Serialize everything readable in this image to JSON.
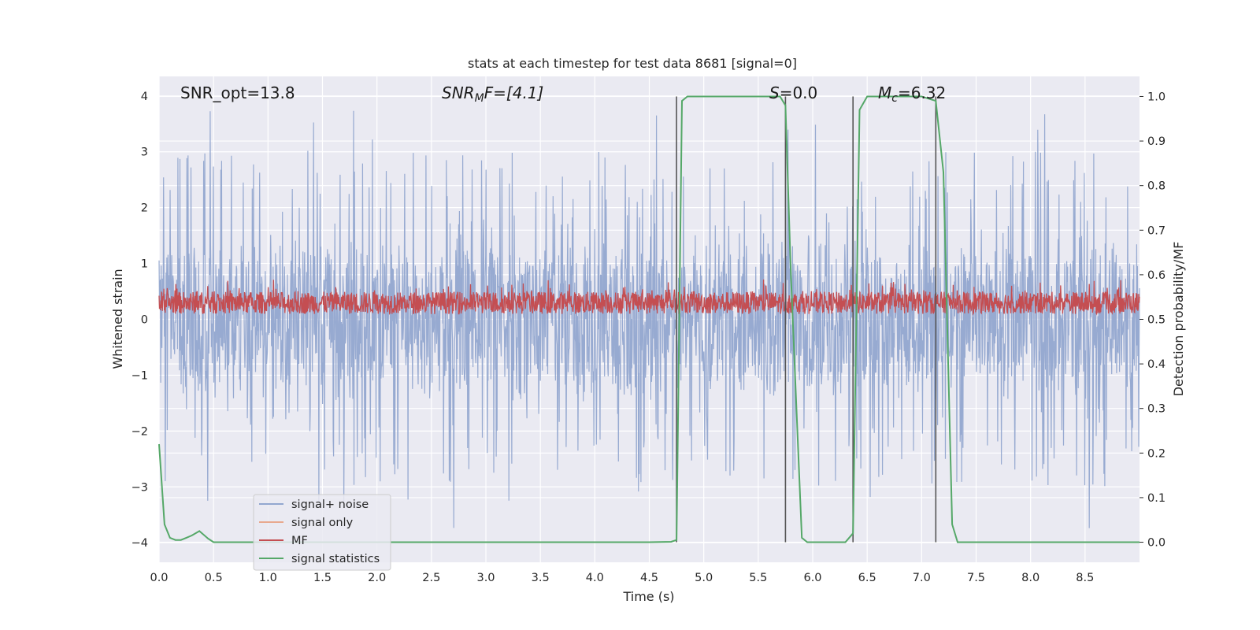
{
  "chart_data": {
    "type": "line",
    "title": "stats at each timestep for test data 8681 [signal=0]",
    "xlabel": "Time (s)",
    "ylabel_left": "Whitened strain",
    "ylabel_right": "Detection probability/MF",
    "xlim": [
      0.0,
      9.0
    ],
    "ylim_left": [
      -4.35,
      4.35
    ],
    "ylim_right": [
      -0.045,
      1.045
    ],
    "x_ticks": [
      "0.0",
      "0.5",
      "1.0",
      "1.5",
      "2.0",
      "2.5",
      "3.0",
      "3.5",
      "4.0",
      "4.5",
      "5.0",
      "5.5",
      "6.0",
      "6.5",
      "7.0",
      "7.5",
      "8.0",
      "8.5"
    ],
    "y_ticks_left": [
      "−4",
      "−3",
      "−2",
      "−1",
      "0",
      "1",
      "2",
      "3",
      "4"
    ],
    "y_ticks_right": [
      "0.0",
      "0.1",
      "0.2",
      "0.3",
      "0.4",
      "0.5",
      "0.6",
      "0.7",
      "0.8",
      "0.9",
      "1.0"
    ],
    "grid": true,
    "legend_position": "lower-left",
    "annotations": {
      "snr_opt": "SNR_opt=13.8",
      "snr_mf_main": "SNR",
      "snr_mf_sub": "M",
      "snr_mf_rest": "F=[4.1]",
      "s_main": "S",
      "s_rest": "=0.0",
      "mc_main": "M",
      "mc_sub": "c",
      "mc_rest": "=6.32"
    },
    "vertical_lines_x": [
      4.75,
      5.75,
      6.37,
      7.13
    ],
    "series": [
      {
        "name": "signal+ noise",
        "color": "#92a7cf",
        "axis": "left",
        "band_low": -1.3,
        "band_high": 1.3,
        "spike_range": [
          -3.8,
          4.0
        ]
      },
      {
        "name": "signal only",
        "color": "#e8a98e",
        "axis": "left"
      },
      {
        "name": "MF",
        "color": "#c44e52",
        "axis": "right",
        "range": [
          0.5,
          0.6
        ]
      },
      {
        "name": "signal statistics",
        "color": "#55a868",
        "axis": "right",
        "x": [
          0.0,
          0.05,
          0.1,
          0.15,
          0.2,
          0.25,
          0.3,
          0.37,
          0.45,
          0.5,
          1.0,
          2.0,
          3.0,
          4.0,
          4.5,
          4.7,
          4.75,
          4.8,
          4.85,
          4.9,
          5.0,
          5.5,
          5.7,
          5.75,
          5.8,
          5.9,
          5.95,
          6.0,
          6.3,
          6.37,
          6.43,
          6.5,
          6.6,
          7.0,
          7.13,
          7.2,
          7.28,
          7.33,
          7.4,
          8.0,
          9.0
        ],
        "y": [
          0.22,
          0.04,
          0.01,
          0.005,
          0.005,
          0.01,
          0.015,
          0.025,
          0.008,
          0.0,
          0.0,
          0.0,
          0.0,
          0.0,
          0.0,
          0.001,
          0.005,
          0.99,
          1.0,
          1.0,
          1.0,
          1.0,
          1.0,
          0.98,
          0.6,
          0.01,
          0.0,
          0.0,
          0.0,
          0.02,
          0.97,
          1.0,
          1.0,
          1.0,
          0.99,
          0.83,
          0.04,
          0.0,
          0.0,
          0.0,
          0.0
        ]
      }
    ]
  }
}
